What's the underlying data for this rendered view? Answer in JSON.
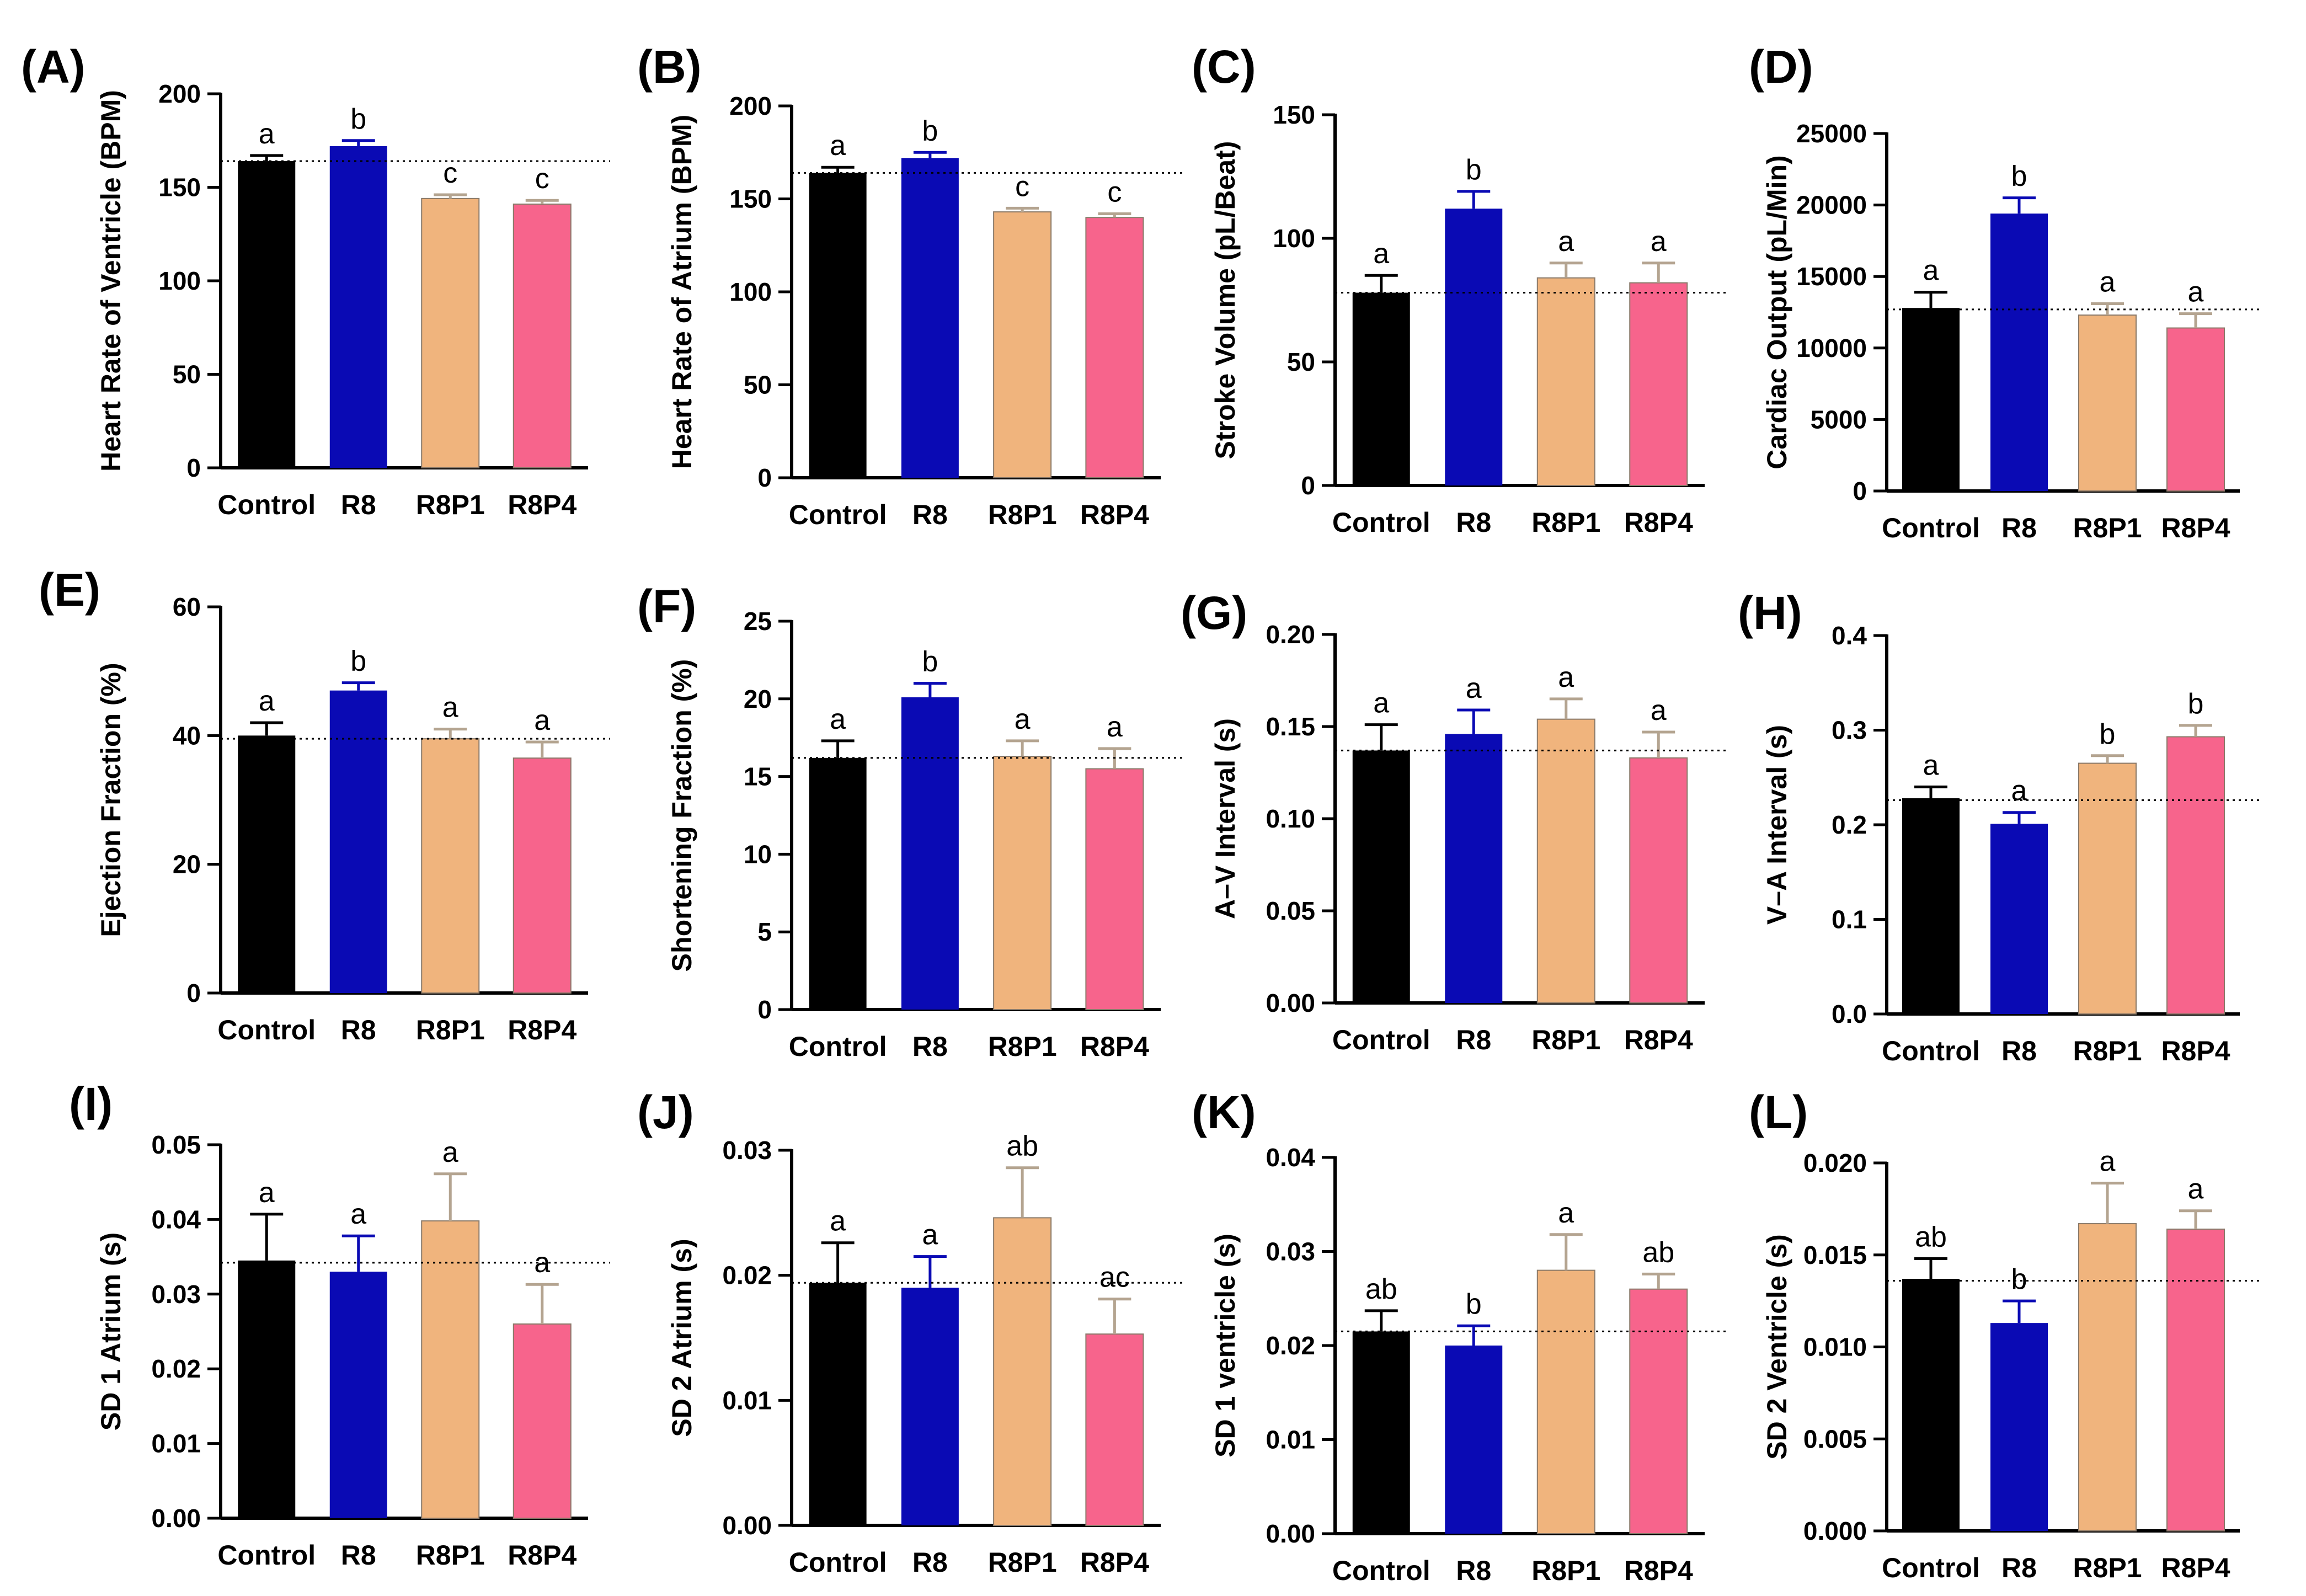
{
  "colors": {
    "Control": "#000000",
    "R8": "#0a0ab4",
    "R8P1": "#f0b47d",
    "R8P4": "#f7648c",
    "err_Control": "#000000",
    "err_R8": "#0a0ab4",
    "err_R8P1": "#b4a490",
    "err_R8P4": "#b4a490",
    "axis": "#000000",
    "reference_line": "#000000"
  },
  "chart_data": [
    {
      "panel": "(A)",
      "type": "bar",
      "ylabel": "Heart Rate of Ventricle (BPM)",
      "categories": [
        "Control",
        "R8",
        "R8P1",
        "R8P4"
      ],
      "values": [
        164,
        172,
        144,
        141
      ],
      "errors": [
        3,
        3,
        2,
        2
      ],
      "letters": [
        "a",
        "b",
        "c",
        "c"
      ],
      "ylim": [
        0,
        200
      ],
      "yticks": [
        0,
        50,
        100,
        150,
        200
      ],
      "reference_value": 164
    },
    {
      "panel": "(B)",
      "type": "bar",
      "ylabel": "Heart Rate of Atrium (BPM)",
      "categories": [
        "Control",
        "R8",
        "R8P1",
        "R8P4"
      ],
      "values": [
        164,
        172,
        143,
        140
      ],
      "errors": [
        3,
        3,
        2,
        2
      ],
      "letters": [
        "a",
        "b",
        "c",
        "c"
      ],
      "ylim": [
        0,
        200
      ],
      "yticks": [
        0,
        50,
        100,
        150,
        200
      ],
      "reference_value": 164
    },
    {
      "panel": "(C)",
      "type": "bar",
      "ylabel": "Stroke Volume (pL/Beat)",
      "categories": [
        "Control",
        "R8",
        "R8P1",
        "R8P4"
      ],
      "values": [
        78,
        112,
        84,
        82
      ],
      "errors": [
        7,
        7,
        6,
        8
      ],
      "letters": [
        "a",
        "b",
        "a",
        "a"
      ],
      "ylim": [
        0,
        150
      ],
      "yticks": [
        0,
        50,
        100,
        150
      ],
      "reference_value": 78
    },
    {
      "panel": "(D)",
      "type": "bar",
      "ylabel": "Cardiac Output (pL/Min)",
      "categories": [
        "Control",
        "R8",
        "R8P1",
        "R8P4"
      ],
      "values": [
        12800,
        19400,
        12300,
        11400
      ],
      "errors": [
        1100,
        1100,
        800,
        1000
      ],
      "letters": [
        "a",
        "b",
        "a",
        "a"
      ],
      "ylim": [
        0,
        25000
      ],
      "yticks": [
        0,
        5000,
        10000,
        15000,
        20000,
        25000
      ],
      "reference_value": 12700
    },
    {
      "panel": "(E)",
      "type": "bar",
      "ylabel": "Ejection Fraction (%)",
      "categories": [
        "Control",
        "R8",
        "R8P1",
        "R8P4"
      ],
      "values": [
        40,
        47,
        39.5,
        36.5
      ],
      "errors": [
        2,
        1.2,
        1.5,
        2.5
      ],
      "letters": [
        "a",
        "b",
        "a",
        "a"
      ],
      "ylim": [
        0,
        60
      ],
      "yticks": [
        0,
        20,
        40,
        60
      ],
      "reference_value": 39.5
    },
    {
      "panel": "(F)",
      "type": "bar",
      "ylabel": "Shortening Fraction (%)",
      "categories": [
        "Control",
        "R8",
        "R8P1",
        "R8P4"
      ],
      "values": [
        16.2,
        20.1,
        16.3,
        15.5
      ],
      "errors": [
        1.1,
        0.9,
        1.0,
        1.3
      ],
      "letters": [
        "a",
        "b",
        "a",
        "a"
      ],
      "ylim": [
        0,
        25
      ],
      "yticks": [
        0,
        5,
        10,
        15,
        20,
        25
      ],
      "reference_value": 16.2
    },
    {
      "panel": "(G)",
      "type": "bar",
      "ylabel": "A–V  Interval (s)",
      "categories": [
        "Control",
        "R8",
        "R8P1",
        "R8P4"
      ],
      "values": [
        0.137,
        0.146,
        0.154,
        0.133
      ],
      "errors": [
        0.014,
        0.013,
        0.011,
        0.014
      ],
      "letters": [
        "a",
        "a",
        "a",
        "a"
      ],
      "ylim": [
        0,
        0.2
      ],
      "yticks": [
        0,
        0.05,
        0.1,
        0.15,
        0.2
      ],
      "ytick_labels": [
        "0.00",
        "0.05",
        "0.10",
        "0.15",
        "0.20"
      ],
      "reference_value": 0.137
    },
    {
      "panel": "(H)",
      "type": "bar",
      "ylabel": "V–A Interval (s)",
      "categories": [
        "Control",
        "R8",
        "R8P1",
        "R8P4"
      ],
      "values": [
        0.228,
        0.201,
        0.265,
        0.293
      ],
      "errors": [
        0.012,
        0.012,
        0.008,
        0.012
      ],
      "letters": [
        "a",
        "a",
        "b",
        "b"
      ],
      "ylim": [
        0,
        0.4
      ],
      "yticks": [
        0,
        0.1,
        0.2,
        0.3,
        0.4
      ],
      "ytick_labels": [
        "0.0",
        "0.1",
        "0.2",
        "0.3",
        "0.4"
      ],
      "reference_value": 0.226
    },
    {
      "panel": "(I)",
      "type": "bar",
      "ylabel": "SD 1 Atrium (s)",
      "categories": [
        "Control",
        "R8",
        "R8P1",
        "R8P4"
      ],
      "values": [
        0.0345,
        0.033,
        0.0398,
        0.026
      ],
      "errors": [
        0.0062,
        0.0048,
        0.0063,
        0.0053
      ],
      "letters": [
        "a",
        "a",
        "a",
        "a"
      ],
      "ylim": [
        0,
        0.05
      ],
      "yticks": [
        0,
        0.01,
        0.02,
        0.03,
        0.04,
        0.05
      ],
      "ytick_labels": [
        "0.00",
        "0.01",
        "0.02",
        "0.03",
        "0.04",
        "0.05"
      ],
      "reference_value": 0.0342
    },
    {
      "panel": "(J)",
      "type": "bar",
      "ylabel": "SD 2 Atrium (s)",
      "categories": [
        "Control",
        "R8",
        "R8P1",
        "R8P4"
      ],
      "values": [
        0.0194,
        0.019,
        0.0246,
        0.0153
      ],
      "errors": [
        0.0032,
        0.0025,
        0.004,
        0.0028
      ],
      "letters": [
        "a",
        "a",
        "ab",
        "ac"
      ],
      "ylim": [
        0,
        0.03
      ],
      "yticks": [
        0,
        0.01,
        0.02,
        0.03
      ],
      "ytick_labels": [
        "0.00",
        "0.01",
        "0.02",
        "0.03"
      ],
      "reference_value": 0.0194
    },
    {
      "panel": "(K)",
      "type": "bar",
      "ylabel": "SD 1 ventricle (s)",
      "categories": [
        "Control",
        "R8",
        "R8P1",
        "R8P4"
      ],
      "values": [
        0.0215,
        0.02,
        0.028,
        0.026
      ],
      "errors": [
        0.0022,
        0.0021,
        0.0038,
        0.0016
      ],
      "letters": [
        "ab",
        "b",
        "a",
        "ab"
      ],
      "ylim": [
        0,
        0.04
      ],
      "yticks": [
        0,
        0.01,
        0.02,
        0.03,
        0.04
      ],
      "ytick_labels": [
        "0.00",
        "0.01",
        "0.02",
        "0.03",
        "0.04"
      ],
      "reference_value": 0.0215
    },
    {
      "panel": "(L)",
      "type": "bar",
      "ylabel": "SD 2 Ventricle (s)",
      "categories": [
        "Control",
        "R8",
        "R8P1",
        "R8P4"
      ],
      "values": [
        0.0137,
        0.0113,
        0.0167,
        0.0164
      ],
      "errors": [
        0.0011,
        0.0012,
        0.0022,
        0.001
      ],
      "letters": [
        "ab",
        "b",
        "a",
        "a"
      ],
      "ylim": [
        0,
        0.02
      ],
      "yticks": [
        0,
        0.005,
        0.01,
        0.015,
        0.02
      ],
      "ytick_labels": [
        "0.000",
        "0.005",
        "0.010",
        "0.015",
        "0.020"
      ],
      "reference_value": 0.0136
    }
  ]
}
